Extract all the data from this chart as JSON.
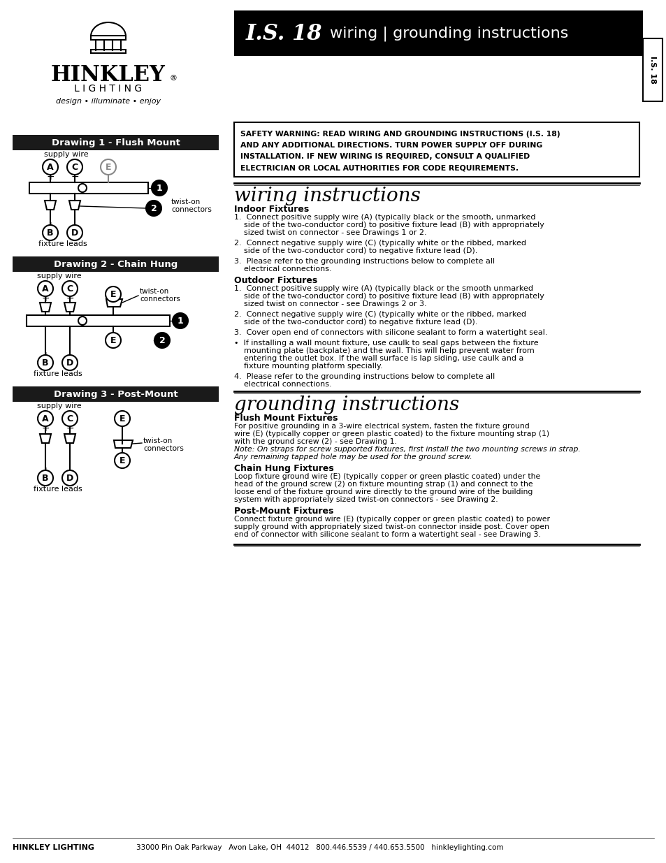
{
  "bg_color": "#ffffff",
  "header_bg": "#000000",
  "header_text_color": "#ffffff",
  "drawing_header_bg": "#1a1a1a",
  "drawing_header_text": "#ffffff",
  "body_text_color": "#000000",
  "gray_text": "#555555",
  "title_is18": "I.S. 18",
  "title_subtitle": "wiring | grounding instructions",
  "safety_warning": "SAFETY WARNING: READ WIRING AND GROUNDING INSTRUCTIONS (I.S. 18)\nAND ANY ADDITIONAL DIRECTIONS. TURN POWER SUPPLY OFF DURING\nINSTALLATION. IF NEW WIRING IS REQUIRED, CONSULT A QUALIFIED\nELECTRICIAN OR LOCAL AUTHORITIES FOR CODE REQUIREMENTS.",
  "wiring_title": "wiring instructions",
  "indoor_header": "Indoor Fixtures",
  "outdoor_header": "Outdoor Fixtures",
  "grounding_title": "grounding instructions",
  "flush_mount_header": "Flush Mount Fixtures",
  "chain_hung_header": "Chain Hung Fixtures",
  "post_mount_header": "Post-Mount Fixtures",
  "footer_company": "HINKLEY LIGHTING",
  "footer_address": "33000 Pin Oak Parkway   Avon Lake, OH  44012   800.446.5539 / 440.653.5500   hinkleylighting.com",
  "drawing1_title": "Drawing 1 - Flush Mount",
  "drawing2_title": "Drawing 2 - Chain Hung",
  "drawing3_title": "Drawing 3 - Post-Mount",
  "tagline": "design • illuminate • enjoy"
}
